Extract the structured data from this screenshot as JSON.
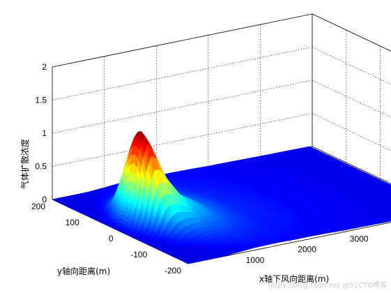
{
  "chart_data": {
    "type": "surface",
    "title": "",
    "xlabel": "x轴下风向距离(m)",
    "ylabel": "y轴向距离(m)",
    "zlabel": "气体扩散浓度",
    "xlim": [
      0,
      5000
    ],
    "ylim": [
      -200,
      200
    ],
    "zlim": [
      0,
      2
    ],
    "x_ticks": [
      "1000",
      "2000",
      "3000",
      "4000",
      "5000"
    ],
    "y_ticks": [
      "200",
      "100",
      "0",
      "-100",
      "-200"
    ],
    "z_ticks": [
      "0",
      "0.5",
      "1",
      "1.5",
      "2"
    ],
    "grid": true,
    "colormap": "jet",
    "peak": {
      "x": 400,
      "y": 0,
      "z": 1.45
    },
    "profile_along_x": {
      "x": [
        0,
        200,
        300,
        400,
        500,
        700,
        1000,
        1500,
        2000,
        3000,
        4000,
        5000
      ],
      "z": [
        0,
        0.6,
        1.25,
        1.45,
        1.3,
        0.85,
        0.45,
        0.2,
        0.1,
        0.04,
        0.02,
        0.01
      ]
    },
    "colors": {
      "surface_base": "#00008f",
      "peak": "#a00000"
    }
  },
  "watermark": "https://blog.csdn.net @51CTO博客"
}
